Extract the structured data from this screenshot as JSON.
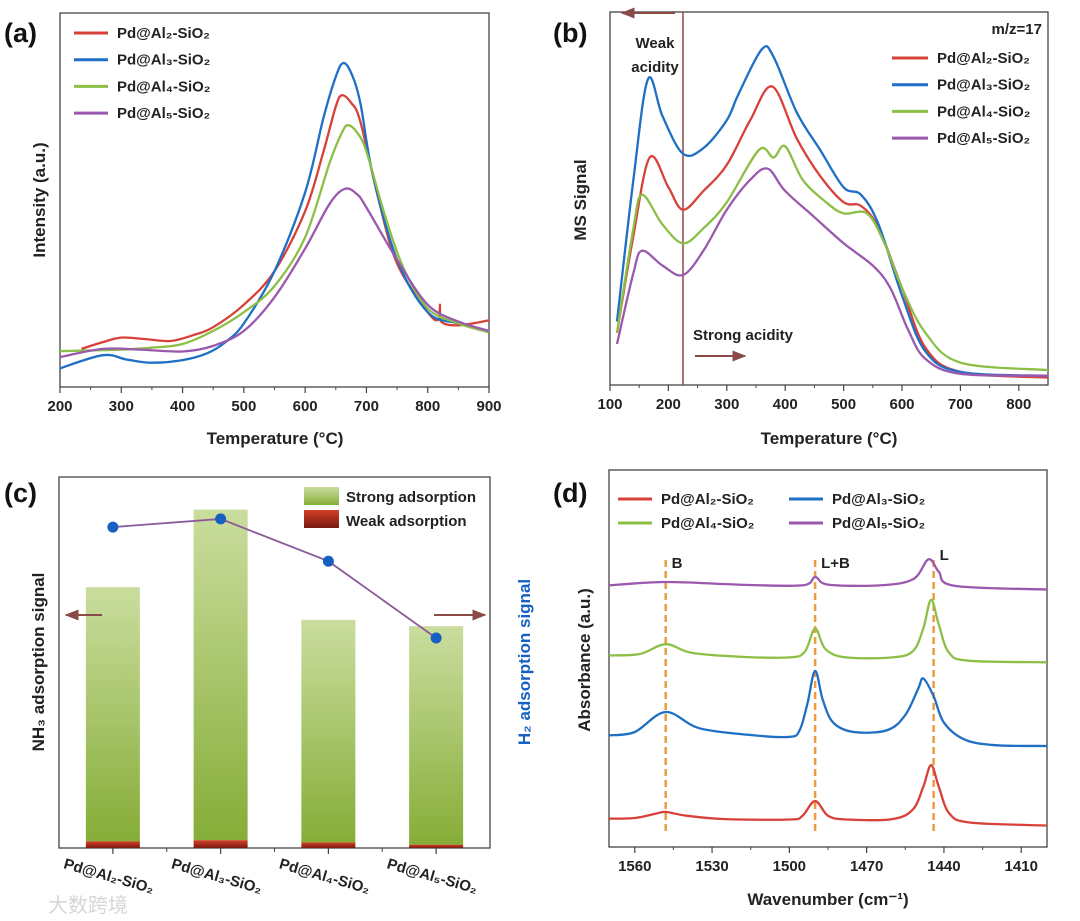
{
  "chart_data": [
    {
      "panel": "(a)",
      "type": "line",
      "xlabel": "Temperature (°C)",
      "ylabel": "Intensity (a.u.)",
      "xlim": [
        200,
        900
      ],
      "ylim": [
        0,
        100
      ],
      "xticks": [
        200,
        300,
        400,
        500,
        600,
        700,
        800,
        900
      ],
      "grid": false,
      "legend": "top-left",
      "series": [
        {
          "name": "Pd@Al₂-SiO₂",
          "color": "#d8413a",
          "points": [
            [
              235,
              10.2
            ],
            [
              270,
              12
            ],
            [
              300,
              13.2
            ],
            [
              340,
              12.8
            ],
            [
              380,
              12.3
            ],
            [
              420,
              14
            ],
            [
              450,
              16
            ],
            [
              500,
              22
            ],
            [
              550,
              31
            ],
            [
              600,
              47
            ],
            [
              630,
              63
            ],
            [
              650,
              75
            ],
            [
              660,
              78
            ],
            [
              675,
              76
            ],
            [
              690,
              71
            ],
            [
              720,
              50
            ],
            [
              750,
              33
            ],
            [
              800,
              20
            ],
            [
              818,
              18
            ],
            [
              820,
              22
            ],
            [
              822,
              17.5
            ],
            [
              850,
              16.5
            ],
            [
              900,
              17.8
            ]
          ]
        },
        {
          "name": "Pd@Al₃-SiO₂",
          "color": "#1f6fc4",
          "points": [
            [
              200,
              5
            ],
            [
              270,
              8.5
            ],
            [
              310,
              7.3
            ],
            [
              350,
              6.5
            ],
            [
              400,
              7.2
            ],
            [
              440,
              9
            ],
            [
              470,
              12
            ],
            [
              500,
              17
            ],
            [
              550,
              31
            ],
            [
              600,
              52
            ],
            [
              630,
              72
            ],
            [
              650,
              83
            ],
            [
              662,
              86.6
            ],
            [
              675,
              84
            ],
            [
              690,
              76
            ],
            [
              710,
              57
            ],
            [
              750,
              34
            ],
            [
              800,
              20
            ],
            [
              850,
              17
            ],
            [
              900,
              15
            ]
          ]
        },
        {
          "name": "Pd@Al₄-SiO₂",
          "color": "#8cbf46",
          "points": [
            [
              200,
              9.6
            ],
            [
              300,
              10
            ],
            [
              350,
              10.5
            ],
            [
              400,
              11.5
            ],
            [
              450,
              15
            ],
            [
              500,
              20
            ],
            [
              550,
              27
            ],
            [
              600,
              40
            ],
            [
              640,
              60
            ],
            [
              660,
              68
            ],
            [
              670,
              70
            ],
            [
              685,
              68
            ],
            [
              700,
              63
            ],
            [
              730,
              46
            ],
            [
              760,
              32
            ],
            [
              800,
              21
            ],
            [
              850,
              17
            ],
            [
              900,
              14.6
            ]
          ]
        },
        {
          "name": "Pd@Al₅-SiO₂",
          "color": "#9a59ad",
          "points": [
            [
              200,
              8
            ],
            [
              270,
              10.2
            ],
            [
              330,
              10
            ],
            [
              400,
              9.5
            ],
            [
              450,
              11
            ],
            [
              500,
              15
            ],
            [
              550,
              24
            ],
            [
              600,
              37
            ],
            [
              640,
              49
            ],
            [
              665,
              53
            ],
            [
              685,
              51.5
            ],
            [
              700,
              48
            ],
            [
              750,
              34
            ],
            [
              800,
              22
            ],
            [
              850,
              17.5
            ],
            [
              900,
              15
            ]
          ]
        }
      ]
    },
    {
      "panel": "(b)",
      "type": "line",
      "xlabel": "Temperature (°C)",
      "ylabel": "MS Signal",
      "xlim": [
        100,
        850
      ],
      "ylim": [
        0,
        100
      ],
      "xticks": [
        100,
        200,
        300,
        400,
        500,
        600,
        700,
        800
      ],
      "grid": false,
      "legend": "top-right",
      "legend_title": "m/z=17",
      "divider_x": 225,
      "annotations": {
        "weak_line1": "Weak",
        "weak_line2": "acidity",
        "strong": "Strong acidity"
      },
      "series": [
        {
          "name": "Pd@Al₂-SiO₂",
          "color": "#d8413a",
          "points": [
            [
              112,
              14
            ],
            [
              140,
              40
            ],
            [
              168,
              61
            ],
            [
              200,
              53
            ],
            [
              225,
              47
            ],
            [
              260,
              52
            ],
            [
              300,
              59
            ],
            [
              340,
              71
            ],
            [
              378,
              80
            ],
            [
              420,
              66
            ],
            [
              460,
              56
            ],
            [
              500,
              49
            ],
            [
              530,
              48
            ],
            [
              560,
              42
            ],
            [
              600,
              26
            ],
            [
              640,
              10
            ],
            [
              700,
              3.5
            ],
            [
              850,
              2
            ]
          ]
        },
        {
          "name": "Pd@Al₃-SiO₂",
          "color": "#1f6fc4",
          "points": [
            [
              112,
              17
            ],
            [
              140,
              55
            ],
            [
              165,
              82
            ],
            [
              190,
              72
            ],
            [
              225,
              62
            ],
            [
              260,
              63.5
            ],
            [
              300,
              71
            ],
            [
              320,
              78
            ],
            [
              360,
              90
            ],
            [
              380,
              88
            ],
            [
              420,
              73
            ],
            [
              460,
              63
            ],
            [
              500,
              53
            ],
            [
              530,
              51
            ],
            [
              560,
              43
            ],
            [
              600,
              24
            ],
            [
              640,
              9
            ],
            [
              700,
              3.5
            ],
            [
              850,
              2.5
            ]
          ]
        },
        {
          "name": "Pd@Al₄-SiO₂",
          "color": "#8cbf46",
          "points": [
            [
              112,
              14
            ],
            [
              140,
              42
            ],
            [
              155,
              51
            ],
            [
              190,
              43
            ],
            [
              225,
              38
            ],
            [
              260,
              42
            ],
            [
              300,
              49
            ],
            [
              355,
              63
            ],
            [
              380,
              61
            ],
            [
              400,
              64
            ],
            [
              430,
              55
            ],
            [
              470,
              49
            ],
            [
              500,
              46
            ],
            [
              540,
              46
            ],
            [
              570,
              38
            ],
            [
              600,
              26
            ],
            [
              640,
              14
            ],
            [
              700,
              6
            ],
            [
              850,
              4
            ]
          ]
        },
        {
          "name": "Pd@Al₅-SiO₂",
          "color": "#9a59ad",
          "points": [
            [
              112,
              11
            ],
            [
              140,
              30
            ],
            [
              155,
              36
            ],
            [
              190,
              32
            ],
            [
              225,
              29.5
            ],
            [
              260,
              36
            ],
            [
              300,
              47
            ],
            [
              340,
              55
            ],
            [
              370,
              58
            ],
            [
              400,
              52
            ],
            [
              450,
              45
            ],
            [
              500,
              38
            ],
            [
              550,
              32
            ],
            [
              580,
              26
            ],
            [
              610,
              15
            ],
            [
              640,
              7
            ],
            [
              700,
              3
            ],
            [
              850,
              2.5
            ]
          ]
        }
      ]
    },
    {
      "panel": "(c)",
      "type": "bar",
      "ylabel_left": "NH₃ adsorption signal",
      "ylabel_right": "H₂ adsorption signal",
      "categories": [
        "Pd@Al₂-SiO₂",
        "Pd@Al₃-SiO₂",
        "Pd@Al₄-SiO₂",
        "Pd@Al₅-SiO₂"
      ],
      "ylim": [
        0,
        100
      ],
      "legend": "top-right",
      "series": [
        {
          "name": "Strong adsorption",
          "color": "#9bbf55",
          "values": [
            68.5,
            89.1,
            60.0,
            58.9
          ]
        },
        {
          "name": "Weak adsorption",
          "color": "#b83020",
          "values": [
            1.8,
            2.1,
            1.5,
            0.9
          ]
        }
      ],
      "line_series": {
        "name": "H₂ adsorption signal",
        "color": "#1560c0",
        "line_color": "#8a5a9a",
        "values": [
          86.5,
          88.7,
          77.3,
          56.6
        ]
      }
    },
    {
      "panel": "(d)",
      "type": "line",
      "xlabel": "Wavenumber (cm⁻¹)",
      "ylabel": "Absorbance (a.u.)",
      "xlim": [
        1570,
        1400
      ],
      "ylim": [
        0,
        100
      ],
      "xticks": [
        1560,
        1530,
        1500,
        1470,
        1440,
        1410
      ],
      "grid": false,
      "legend": "top",
      "peak_markers": [
        {
          "x": 1548,
          "label": "B"
        },
        {
          "x": 1490,
          "label": "L+B"
        },
        {
          "x": 1444,
          "label": "L"
        }
      ],
      "series": [
        {
          "name": "Pd@Al₂-SiO₂",
          "color": "#d8413a",
          "points": [
            [
              1570,
              7.5
            ],
            [
              1560,
              7.7
            ],
            [
              1552,
              8.8
            ],
            [
              1548,
              9.3
            ],
            [
              1540,
              8.3
            ],
            [
              1525,
              7.4
            ],
            [
              1500,
              7.3
            ],
            [
              1495,
              8.2
            ],
            [
              1490,
              12.2
            ],
            [
              1485,
              8.3
            ],
            [
              1478,
              7.3
            ],
            [
              1460,
              7.4
            ],
            [
              1452,
              10
            ],
            [
              1448,
              16
            ],
            [
              1445,
              21.7
            ],
            [
              1442,
              16
            ],
            [
              1438,
              9
            ],
            [
              1430,
              6.5
            ],
            [
              1400,
              5.7
            ]
          ]
        },
        {
          "name": "Pd@Al₃-SiO₂",
          "color": "#1f6fc4",
          "points": [
            [
              1570,
              29.6
            ],
            [
              1560,
              30.5
            ],
            [
              1548,
              35.8
            ],
            [
              1535,
              31.5
            ],
            [
              1515,
              29.7
            ],
            [
              1500,
              29.2
            ],
            [
              1496,
              31
            ],
            [
              1493,
              38
            ],
            [
              1490,
              46.7
            ],
            [
              1487,
              39
            ],
            [
              1483,
              33
            ],
            [
              1475,
              30.5
            ],
            [
              1462,
              31
            ],
            [
              1455,
              35
            ],
            [
              1450,
              42
            ],
            [
              1448,
              44.7
            ],
            [
              1444,
              40
            ],
            [
              1440,
              33
            ],
            [
              1432,
              28.5
            ],
            [
              1420,
              27
            ],
            [
              1400,
              26.8
            ]
          ]
        },
        {
          "name": "Pd@Al₄-SiO₂",
          "color": "#8cbf46",
          "points": [
            [
              1570,
              50.8
            ],
            [
              1558,
              51.2
            ],
            [
              1548,
              53.8
            ],
            [
              1538,
              51.5
            ],
            [
              1520,
              50.5
            ],
            [
              1500,
              50.3
            ],
            [
              1494,
              51.8
            ],
            [
              1490,
              57.9
            ],
            [
              1486,
              52.5
            ],
            [
              1478,
              50.3
            ],
            [
              1460,
              50.3
            ],
            [
              1452,
              52
            ],
            [
              1448,
              58
            ],
            [
              1445,
              65.6
            ],
            [
              1442,
              59
            ],
            [
              1438,
              51.5
            ],
            [
              1430,
              49.4
            ],
            [
              1400,
              49
            ]
          ]
        },
        {
          "name": "Pd@Al₅-SiO₂",
          "color": "#9a59ad",
          "points": [
            [
              1570,
              69.4
            ],
            [
              1548,
              70.3
            ],
            [
              1520,
              69.6
            ],
            [
              1495,
              69.4
            ],
            [
              1490,
              71.6
            ],
            [
              1485,
              69.6
            ],
            [
              1465,
              69.4
            ],
            [
              1452,
              71
            ],
            [
              1446,
              76.3
            ],
            [
              1442,
              73
            ],
            [
              1436,
              69.3
            ],
            [
              1400,
              68.3
            ]
          ]
        }
      ]
    }
  ],
  "watermark": "大数跨境"
}
